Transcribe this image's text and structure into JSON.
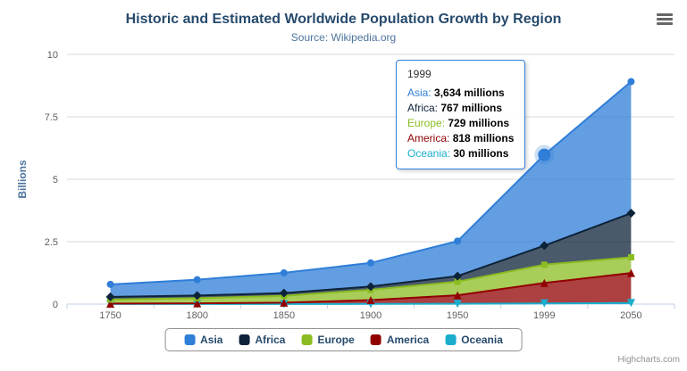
{
  "header": {
    "title": "Historic and Estimated Worldwide Population Growth by Region",
    "subtitle": "Source: Wikipedia.org"
  },
  "credits": "Highcharts.com",
  "tooltip": {
    "header": "1999",
    "rows": [
      {
        "label": "Asia",
        "value": "3,634 millions"
      },
      {
        "label": "Africa",
        "value": "767 millions"
      },
      {
        "label": "Europe",
        "value": "729 millions"
      },
      {
        "label": "America",
        "value": "818 millions"
      },
      {
        "label": "Oceania",
        "value": "30 millions"
      }
    ]
  },
  "chart_data": {
    "type": "area",
    "stacking": "normal",
    "title": "Historic and Estimated Worldwide Population Growth by Region",
    "subtitle": "Source: Wikipedia.org",
    "xlabel": "",
    "ylabel": "Billions",
    "ylim": [
      0,
      10
    ],
    "yticks": [
      0,
      2.5,
      5,
      7.5,
      10
    ],
    "grid": true,
    "legend_position": "bottom",
    "unit": "millions",
    "categories": [
      "1750",
      "1800",
      "1850",
      "1900",
      "1950",
      "1999",
      "2050"
    ],
    "series": [
      {
        "name": "Asia",
        "color": "#2f7ed8",
        "marker": "circle",
        "values": [
          502,
          635,
          809,
          947,
          1402,
          3634,
          5268
        ]
      },
      {
        "name": "Africa",
        "color": "#0d233a",
        "marker": "diamond",
        "values": [
          106,
          107,
          111,
          133,
          221,
          767,
          1766
        ]
      },
      {
        "name": "Europe",
        "color": "#8bbc21",
        "marker": "square",
        "values": [
          163,
          203,
          276,
          408,
          547,
          729,
          628
        ]
      },
      {
        "name": "America",
        "color": "#910000",
        "marker": "triangle",
        "values": [
          18,
          31,
          54,
          156,
          339,
          818,
          1201
        ]
      },
      {
        "name": "Oceania",
        "color": "#1aadce",
        "marker": "triangle-down",
        "values": [
          2,
          2,
          2,
          6,
          13,
          30,
          46
        ]
      }
    ],
    "hover": {
      "series": "Asia",
      "category": "1999"
    }
  }
}
